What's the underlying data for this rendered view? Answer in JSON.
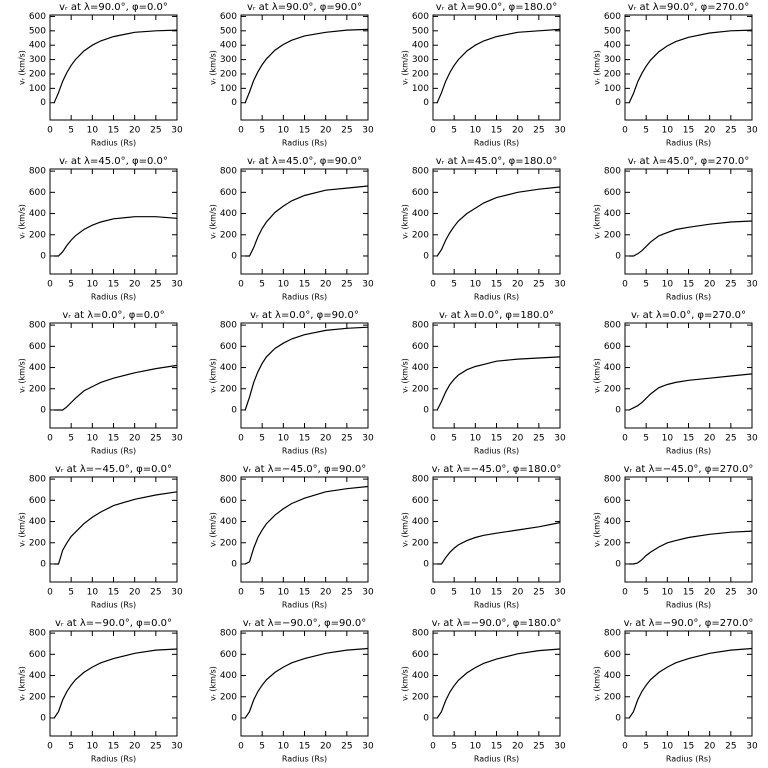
{
  "chart_data": [
    {
      "type": "line",
      "title": "vᵣ at λ=90.0°, φ=0.0°",
      "xlabel": "Radius (Rs)",
      "ylabel": "vᵣ (km/s)",
      "x": [
        1,
        2,
        3,
        4,
        5,
        6,
        8,
        10,
        12,
        15,
        20,
        25,
        30
      ],
      "values": [
        0,
        70,
        150,
        210,
        260,
        300,
        360,
        400,
        430,
        460,
        490,
        500,
        505
      ],
      "color": "#000000",
      "xlim": [
        0,
        30
      ],
      "ylim": [
        -120,
        610
      ],
      "xticks": [
        0,
        5,
        10,
        15,
        20,
        25,
        30
      ],
      "yticks": [
        0,
        100,
        200,
        300,
        400,
        500,
        600
      ]
    },
    {
      "type": "line",
      "title": "vᵣ at λ=90.0°, φ=90.0°",
      "xlabel": "Radius (Rs)",
      "ylabel": "vᵣ (km/s)",
      "x": [
        1,
        2,
        3,
        4,
        5,
        6,
        8,
        10,
        12,
        15,
        20,
        25,
        30
      ],
      "values": [
        0,
        75,
        155,
        215,
        265,
        305,
        365,
        405,
        435,
        465,
        490,
        505,
        510
      ],
      "color": "#000000",
      "xlim": [
        0,
        30
      ],
      "ylim": [
        -120,
        610
      ],
      "xticks": [
        0,
        5,
        10,
        15,
        20,
        25,
        30
      ],
      "yticks": [
        0,
        100,
        200,
        300,
        400,
        500,
        600
      ]
    },
    {
      "type": "line",
      "title": "vᵣ at λ=90.0°, φ=180.0°",
      "xlabel": "Radius (Rs)",
      "ylabel": "vᵣ (km/s)",
      "x": [
        1,
        2,
        3,
        4,
        5,
        6,
        8,
        10,
        12,
        15,
        20,
        25,
        30
      ],
      "values": [
        0,
        70,
        150,
        210,
        260,
        300,
        360,
        400,
        430,
        460,
        490,
        500,
        510
      ],
      "color": "#000000",
      "xlim": [
        0,
        30
      ],
      "ylim": [
        -120,
        610
      ],
      "xticks": [
        0,
        5,
        10,
        15,
        20,
        25,
        30
      ],
      "yticks": [
        0,
        100,
        200,
        300,
        400,
        500,
        600
      ]
    },
    {
      "type": "line",
      "title": "vᵣ at λ=90.0°, φ=270.0°",
      "xlabel": "Radius (Rs)",
      "ylabel": "vᵣ (km/s)",
      "x": [
        1,
        2,
        3,
        4,
        5,
        6,
        8,
        10,
        12,
        15,
        20,
        25,
        30
      ],
      "values": [
        0,
        65,
        145,
        205,
        255,
        295,
        355,
        395,
        425,
        455,
        485,
        500,
        505
      ],
      "color": "#000000",
      "xlim": [
        0,
        30
      ],
      "ylim": [
        -120,
        610
      ],
      "xticks": [
        0,
        5,
        10,
        15,
        20,
        25,
        30
      ],
      "yticks": [
        0,
        100,
        200,
        300,
        400,
        500,
        600
      ]
    },
    {
      "type": "line",
      "title": "vᵣ at λ=45.0°, φ=0.0°",
      "xlabel": "Radius (Rs)",
      "ylabel": "vᵣ (km/s)",
      "x": [
        1,
        2,
        3,
        4,
        5,
        6,
        8,
        10,
        12,
        15,
        20,
        25,
        30
      ],
      "values": [
        0,
        0,
        40,
        100,
        150,
        190,
        250,
        290,
        320,
        350,
        370,
        370,
        355
      ],
      "color": "#000000",
      "xlim": [
        0,
        30
      ],
      "ylim": [
        -170,
        820
      ],
      "xticks": [
        0,
        5,
        10,
        15,
        20,
        25,
        30
      ],
      "yticks": [
        0,
        200,
        400,
        600,
        800
      ]
    },
    {
      "type": "line",
      "title": "vᵣ at λ=45.0°, φ=90.0°",
      "xlabel": "Radius (Rs)",
      "ylabel": "vᵣ (km/s)",
      "x": [
        1,
        2,
        3,
        4,
        5,
        6,
        8,
        10,
        12,
        15,
        20,
        25,
        30
      ],
      "values": [
        0,
        0,
        80,
        180,
        260,
        320,
        410,
        470,
        520,
        570,
        620,
        640,
        660
      ],
      "color": "#000000",
      "xlim": [
        0,
        30
      ],
      "ylim": [
        -170,
        820
      ],
      "xticks": [
        0,
        5,
        10,
        15,
        20,
        25,
        30
      ],
      "yticks": [
        0,
        200,
        400,
        600,
        800
      ]
    },
    {
      "type": "line",
      "title": "vᵣ at λ=45.0°, φ=180.0°",
      "xlabel": "Radius (Rs)",
      "ylabel": "vᵣ (km/s)",
      "x": [
        1,
        2,
        3,
        4,
        5,
        6,
        8,
        10,
        12,
        15,
        20,
        25,
        30
      ],
      "values": [
        0,
        60,
        150,
        220,
        280,
        330,
        400,
        450,
        500,
        550,
        600,
        630,
        650
      ],
      "color": "#000000",
      "xlim": [
        0,
        30
      ],
      "ylim": [
        -170,
        820
      ],
      "xticks": [
        0,
        5,
        10,
        15,
        20,
        25,
        30
      ],
      "yticks": [
        0,
        200,
        400,
        600,
        800
      ]
    },
    {
      "type": "line",
      "title": "vᵣ at λ=45.0°, φ=270.0°",
      "xlabel": "Radius (Rs)",
      "ylabel": "vᵣ (km/s)",
      "x": [
        1,
        2,
        3,
        4,
        5,
        6,
        8,
        10,
        12,
        15,
        20,
        25,
        30
      ],
      "values": [
        0,
        0,
        20,
        50,
        90,
        130,
        190,
        220,
        250,
        270,
        300,
        320,
        330
      ],
      "color": "#000000",
      "xlim": [
        0,
        30
      ],
      "ylim": [
        -170,
        820
      ],
      "xticks": [
        0,
        5,
        10,
        15,
        20,
        25,
        30
      ],
      "yticks": [
        0,
        200,
        400,
        600,
        800
      ]
    },
    {
      "type": "line",
      "title": "vᵣ at λ=0.0°, φ=0.0°",
      "xlabel": "Radius (Rs)",
      "ylabel": "vᵣ (km/s)",
      "x": [
        1,
        2,
        3,
        4,
        5,
        6,
        8,
        10,
        12,
        15,
        20,
        25,
        30
      ],
      "values": [
        0,
        0,
        0,
        30,
        70,
        110,
        180,
        220,
        260,
        300,
        350,
        390,
        420
      ],
      "color": "#000000",
      "xlim": [
        0,
        30
      ],
      "ylim": [
        -170,
        820
      ],
      "xticks": [
        0,
        5,
        10,
        15,
        20,
        25,
        30
      ],
      "yticks": [
        0,
        200,
        400,
        600,
        800
      ]
    },
    {
      "type": "line",
      "title": "vᵣ at λ=0.0°, φ=90.0°",
      "xlabel": "Radius (Rs)",
      "ylabel": "vᵣ (km/s)",
      "x": [
        1,
        2,
        3,
        4,
        5,
        6,
        8,
        10,
        12,
        15,
        20,
        25,
        30
      ],
      "values": [
        0,
        120,
        260,
        360,
        440,
        500,
        580,
        630,
        670,
        710,
        750,
        770,
        780
      ],
      "color": "#000000",
      "xlim": [
        0,
        30
      ],
      "ylim": [
        -170,
        820
      ],
      "xticks": [
        0,
        5,
        10,
        15,
        20,
        25,
        30
      ],
      "yticks": [
        0,
        200,
        400,
        600,
        800
      ]
    },
    {
      "type": "line",
      "title": "vᵣ at λ=0.0°, φ=180.0°",
      "xlabel": "Radius (Rs)",
      "ylabel": "vᵣ (km/s)",
      "x": [
        1,
        2,
        3,
        4,
        5,
        6,
        8,
        10,
        12,
        15,
        20,
        25,
        30
      ],
      "values": [
        0,
        80,
        170,
        240,
        290,
        330,
        380,
        410,
        430,
        460,
        480,
        490,
        500
      ],
      "color": "#000000",
      "xlim": [
        0,
        30
      ],
      "ylim": [
        -170,
        820
      ],
      "xticks": [
        0,
        5,
        10,
        15,
        20,
        25,
        30
      ],
      "yticks": [
        0,
        200,
        400,
        600,
        800
      ]
    },
    {
      "type": "line",
      "title": "vᵣ at λ=0.0°, φ=270.0°",
      "xlabel": "Radius (Rs)",
      "ylabel": "vᵣ (km/s)",
      "x": [
        1,
        2,
        3,
        4,
        5,
        6,
        8,
        10,
        12,
        15,
        20,
        25,
        30
      ],
      "values": [
        0,
        20,
        40,
        70,
        110,
        150,
        210,
        240,
        260,
        280,
        300,
        320,
        340
      ],
      "color": "#000000",
      "xlim": [
        0,
        30
      ],
      "ylim": [
        -170,
        820
      ],
      "xticks": [
        0,
        5,
        10,
        15,
        20,
        25,
        30
      ],
      "yticks": [
        0,
        200,
        400,
        600,
        800
      ]
    },
    {
      "type": "line",
      "title": "vᵣ at λ=−45.0°, φ=0.0°",
      "xlabel": "Radius (Rs)",
      "ylabel": "vᵣ (km/s)",
      "x": [
        1,
        2,
        3,
        4,
        5,
        6,
        8,
        10,
        12,
        15,
        20,
        25,
        30
      ],
      "values": [
        0,
        0,
        130,
        200,
        260,
        300,
        380,
        440,
        490,
        550,
        610,
        650,
        680
      ],
      "color": "#000000",
      "xlim": [
        0,
        30
      ],
      "ylim": [
        -170,
        820
      ],
      "xticks": [
        0,
        5,
        10,
        15,
        20,
        25,
        30
      ],
      "yticks": [
        0,
        200,
        400,
        600,
        800
      ]
    },
    {
      "type": "line",
      "title": "vᵣ at λ=−45.0°, φ=90.0°",
      "xlabel": "Radius (Rs)",
      "ylabel": "vᵣ (km/s)",
      "x": [
        1,
        2,
        3,
        4,
        5,
        6,
        8,
        10,
        12,
        15,
        20,
        25,
        30
      ],
      "values": [
        0,
        20,
        150,
        250,
        320,
        380,
        460,
        520,
        570,
        620,
        680,
        710,
        730
      ],
      "color": "#000000",
      "xlim": [
        0,
        30
      ],
      "ylim": [
        -170,
        820
      ],
      "xticks": [
        0,
        5,
        10,
        15,
        20,
        25,
        30
      ],
      "yticks": [
        0,
        200,
        400,
        600,
        800
      ]
    },
    {
      "type": "line",
      "title": "vᵣ at λ=−45.0°, φ=180.0°",
      "xlabel": "Radius (Rs)",
      "ylabel": "vᵣ (km/s)",
      "x": [
        1,
        2,
        3,
        4,
        5,
        6,
        8,
        10,
        12,
        15,
        20,
        25,
        30
      ],
      "values": [
        0,
        0,
        60,
        110,
        150,
        180,
        220,
        250,
        270,
        290,
        320,
        350,
        390
      ],
      "color": "#000000",
      "xlim": [
        0,
        30
      ],
      "ylim": [
        -170,
        820
      ],
      "xticks": [
        0,
        5,
        10,
        15,
        20,
        25,
        30
      ],
      "yticks": [
        0,
        200,
        400,
        600,
        800
      ]
    },
    {
      "type": "line",
      "title": "vᵣ at λ=−45.0°, φ=270.0°",
      "xlabel": "Radius (Rs)",
      "ylabel": "vᵣ (km/s)",
      "x": [
        1,
        2,
        3,
        4,
        5,
        6,
        8,
        10,
        12,
        15,
        20,
        25,
        30
      ],
      "values": [
        0,
        0,
        10,
        40,
        80,
        110,
        160,
        200,
        220,
        250,
        280,
        300,
        310
      ],
      "color": "#000000",
      "xlim": [
        0,
        30
      ],
      "ylim": [
        -170,
        820
      ],
      "xticks": [
        0,
        5,
        10,
        15,
        20,
        25,
        30
      ],
      "yticks": [
        0,
        200,
        400,
        600,
        800
      ]
    },
    {
      "type": "line",
      "title": "vᵣ at λ=−90.0°, φ=0.0°",
      "xlabel": "Radius (Rs)",
      "ylabel": "vᵣ (km/s)",
      "x": [
        1,
        2,
        3,
        4,
        5,
        6,
        8,
        10,
        12,
        15,
        20,
        25,
        30
      ],
      "values": [
        0,
        60,
        170,
        250,
        310,
        360,
        430,
        480,
        520,
        560,
        610,
        640,
        650
      ],
      "color": "#000000",
      "xlim": [
        0,
        30
      ],
      "ylim": [
        -170,
        820
      ],
      "xticks": [
        0,
        5,
        10,
        15,
        20,
        25,
        30
      ],
      "yticks": [
        0,
        200,
        400,
        600,
        800
      ]
    },
    {
      "type": "line",
      "title": "vᵣ at λ=−90.0°, φ=90.0°",
      "xlabel": "Radius (Rs)",
      "ylabel": "vᵣ (km/s)",
      "x": [
        1,
        2,
        3,
        4,
        5,
        6,
        8,
        10,
        12,
        15,
        20,
        25,
        30
      ],
      "values": [
        0,
        60,
        170,
        250,
        310,
        360,
        430,
        480,
        520,
        560,
        610,
        640,
        655
      ],
      "color": "#000000",
      "xlim": [
        0,
        30
      ],
      "ylim": [
        -170,
        820
      ],
      "xticks": [
        0,
        5,
        10,
        15,
        20,
        25,
        30
      ],
      "yticks": [
        0,
        200,
        400,
        600,
        800
      ]
    },
    {
      "type": "line",
      "title": "vᵣ at λ=−90.0°, φ=180.0°",
      "xlabel": "Radius (Rs)",
      "ylabel": "vᵣ (km/s)",
      "x": [
        1,
        2,
        3,
        4,
        5,
        6,
        8,
        10,
        12,
        15,
        20,
        25,
        30
      ],
      "values": [
        0,
        60,
        165,
        245,
        305,
        355,
        425,
        475,
        515,
        555,
        605,
        635,
        650
      ],
      "color": "#000000",
      "xlim": [
        0,
        30
      ],
      "ylim": [
        -170,
        820
      ],
      "xticks": [
        0,
        5,
        10,
        15,
        20,
        25,
        30
      ],
      "yticks": [
        0,
        200,
        400,
        600,
        800
      ]
    },
    {
      "type": "line",
      "title": "vᵣ at λ=−90.0°, φ=270.0°",
      "xlabel": "Radius (Rs)",
      "ylabel": "vᵣ (km/s)",
      "x": [
        1,
        2,
        3,
        4,
        5,
        6,
        8,
        10,
        12,
        15,
        20,
        25,
        30
      ],
      "values": [
        0,
        60,
        170,
        250,
        310,
        360,
        430,
        480,
        520,
        560,
        610,
        640,
        655
      ],
      "color": "#000000",
      "xlim": [
        0,
        30
      ],
      "ylim": [
        -170,
        820
      ],
      "xticks": [
        0,
        5,
        10,
        15,
        20,
        25,
        30
      ],
      "yticks": [
        0,
        200,
        400,
        600,
        800
      ]
    }
  ]
}
